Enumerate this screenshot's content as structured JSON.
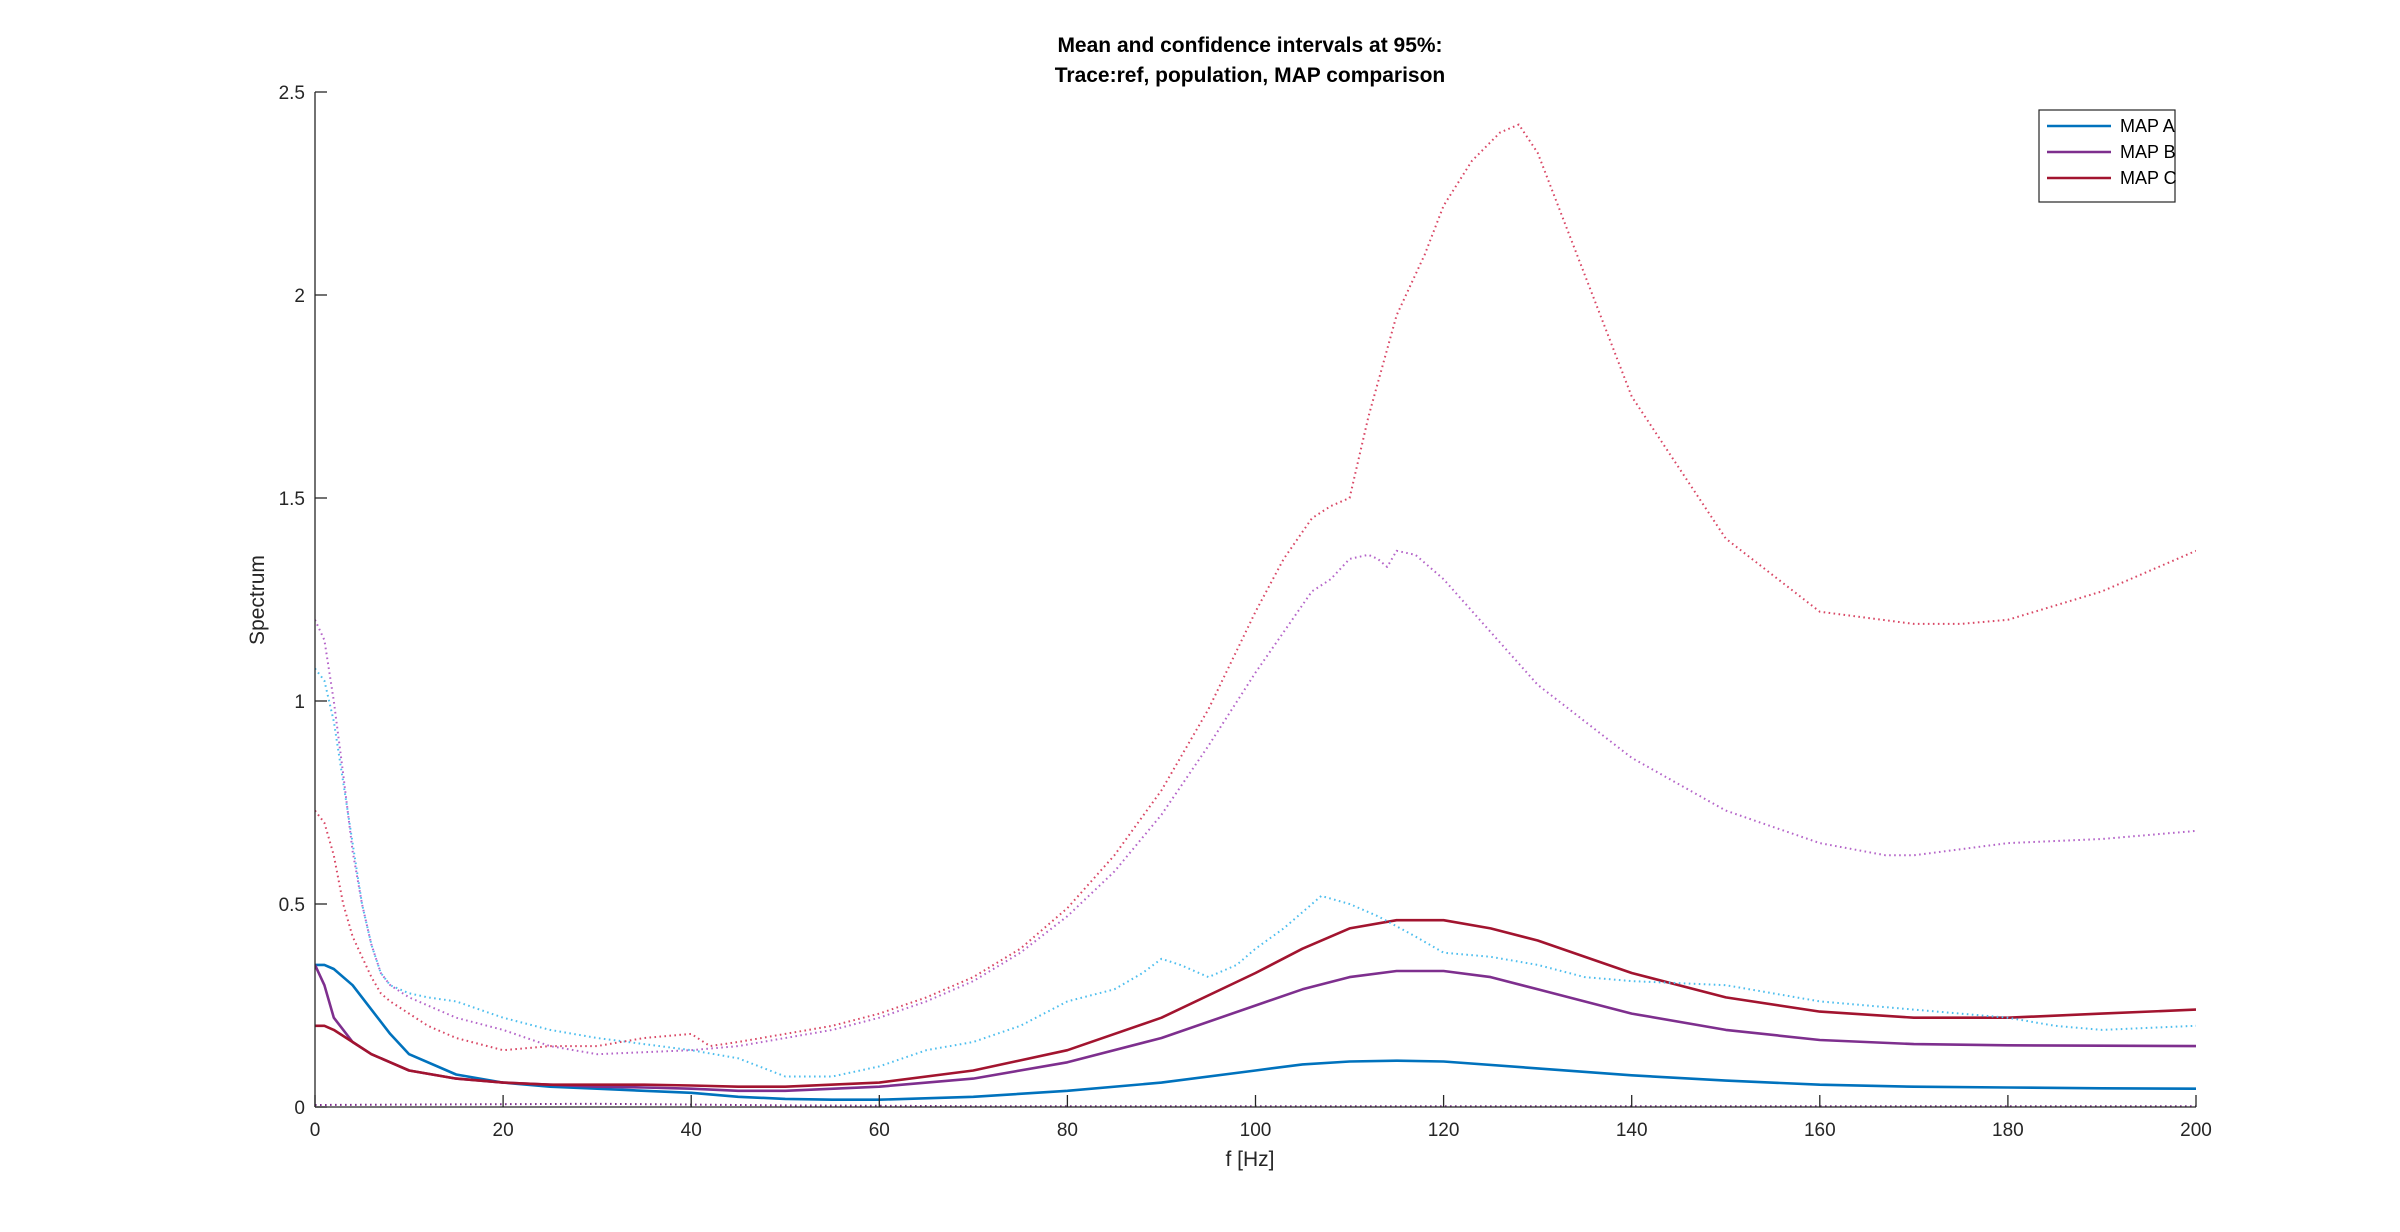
{
  "chart_data": {
    "type": "line",
    "title": [
      "Mean and confidence intervals at 95%:",
      "Trace:ref, population, MAP comparison"
    ],
    "xlabel": "f [Hz]",
    "ylabel": "Spectrum",
    "xlim": [
      0,
      200
    ],
    "ylim": [
      0,
      2.5
    ],
    "xticks": [
      0,
      20,
      40,
      60,
      80,
      100,
      120,
      140,
      160,
      180,
      200
    ],
    "xtick_labels": [
      "0",
      "20",
      "40",
      "60",
      "80",
      "100",
      "120",
      "140",
      "160",
      "180",
      "200"
    ],
    "yticks": [
      0,
      0.5,
      1,
      1.5,
      2,
      2.5
    ],
    "ytick_labels": [
      "0",
      "0.5",
      "1",
      "1.5",
      "2",
      "2.5"
    ],
    "grid": false,
    "legend_position": "top-right",
    "series": [
      {
        "name": "MAP A",
        "color": "#0072BD",
        "style": "solid",
        "in_legend": true,
        "x": [
          0,
          1,
          2,
          4,
          6,
          8,
          10,
          15,
          20,
          25,
          30,
          35,
          40,
          45,
          50,
          55,
          60,
          70,
          80,
          90,
          100,
          105,
          110,
          115,
          120,
          130,
          140,
          150,
          160,
          170,
          180,
          190,
          200
        ],
        "y": [
          0.35,
          0.35,
          0.34,
          0.3,
          0.24,
          0.18,
          0.13,
          0.08,
          0.06,
          0.05,
          0.045,
          0.04,
          0.035,
          0.025,
          0.02,
          0.018,
          0.018,
          0.025,
          0.04,
          0.06,
          0.09,
          0.105,
          0.112,
          0.114,
          0.112,
          0.095,
          0.078,
          0.065,
          0.055,
          0.05,
          0.048,
          0.046,
          0.045
        ]
      },
      {
        "name": "MAP B",
        "color": "#7E2F8E",
        "style": "solid",
        "in_legend": true,
        "x": [
          0,
          1,
          2,
          4,
          6,
          8,
          10,
          15,
          20,
          25,
          30,
          35,
          40,
          45,
          50,
          60,
          70,
          80,
          90,
          100,
          105,
          110,
          115,
          120,
          125,
          130,
          140,
          150,
          160,
          170,
          180,
          190,
          200
        ],
        "y": [
          0.35,
          0.3,
          0.22,
          0.16,
          0.13,
          0.11,
          0.09,
          0.07,
          0.06,
          0.055,
          0.05,
          0.048,
          0.045,
          0.04,
          0.04,
          0.05,
          0.07,
          0.11,
          0.17,
          0.25,
          0.29,
          0.32,
          0.335,
          0.335,
          0.32,
          0.29,
          0.23,
          0.19,
          0.165,
          0.155,
          0.152,
          0.151,
          0.15
        ]
      },
      {
        "name": "MAP C",
        "color": "#A2142F",
        "style": "solid",
        "in_legend": true,
        "x": [
          0,
          1,
          2,
          4,
          6,
          8,
          10,
          15,
          20,
          25,
          30,
          35,
          40,
          45,
          50,
          60,
          70,
          80,
          90,
          100,
          105,
          110,
          115,
          120,
          125,
          130,
          140,
          150,
          160,
          170,
          180,
          190,
          200
        ],
        "y": [
          0.2,
          0.2,
          0.19,
          0.16,
          0.13,
          0.11,
          0.09,
          0.07,
          0.06,
          0.055,
          0.055,
          0.055,
          0.053,
          0.05,
          0.05,
          0.06,
          0.09,
          0.14,
          0.22,
          0.33,
          0.39,
          0.44,
          0.46,
          0.46,
          0.44,
          0.41,
          0.33,
          0.27,
          0.235,
          0.22,
          0.22,
          0.23,
          0.24
        ]
      },
      {
        "name": "",
        "color": "#4DBEEE",
        "style": "dotted",
        "in_legend": false,
        "x": [
          0,
          1,
          2,
          3,
          4,
          5,
          6,
          7,
          8,
          10,
          12,
          15,
          20,
          25,
          30,
          35,
          40,
          45,
          50,
          55,
          60,
          65,
          70,
          75,
          80,
          85,
          88,
          90,
          92,
          95,
          98,
          100,
          103,
          107,
          110,
          113,
          117,
          120,
          125,
          130,
          135,
          140,
          150,
          160,
          170,
          180,
          185,
          190,
          200
        ],
        "y": [
          1.08,
          1.05,
          0.95,
          0.8,
          0.65,
          0.5,
          0.4,
          0.33,
          0.3,
          0.28,
          0.27,
          0.26,
          0.22,
          0.19,
          0.17,
          0.155,
          0.14,
          0.12,
          0.075,
          0.075,
          0.1,
          0.14,
          0.16,
          0.2,
          0.26,
          0.29,
          0.33,
          0.365,
          0.35,
          0.32,
          0.35,
          0.39,
          0.44,
          0.52,
          0.5,
          0.47,
          0.42,
          0.38,
          0.37,
          0.35,
          0.32,
          0.31,
          0.3,
          0.26,
          0.24,
          0.22,
          0.2,
          0.19,
          0.2
        ]
      },
      {
        "name": "",
        "color": "#B565C9",
        "style": "dotted",
        "in_legend": false,
        "x": [
          0,
          1,
          2,
          3,
          4,
          5,
          6,
          7,
          8,
          10,
          12,
          15,
          20,
          25,
          30,
          35,
          40,
          45,
          50,
          55,
          60,
          65,
          70,
          75,
          80,
          85,
          90,
          95,
          100,
          103,
          106,
          108,
          110,
          112,
          113,
          114,
          115,
          117,
          120,
          125,
          130,
          140,
          150,
          160,
          167,
          170,
          180,
          190,
          200
        ],
        "y": [
          1.2,
          1.15,
          1.0,
          0.82,
          0.63,
          0.5,
          0.4,
          0.33,
          0.3,
          0.27,
          0.25,
          0.22,
          0.19,
          0.15,
          0.13,
          0.135,
          0.14,
          0.15,
          0.17,
          0.19,
          0.22,
          0.26,
          0.31,
          0.38,
          0.47,
          0.58,
          0.72,
          0.89,
          1.07,
          1.17,
          1.27,
          1.3,
          1.35,
          1.36,
          1.35,
          1.33,
          1.37,
          1.36,
          1.3,
          1.17,
          1.04,
          0.86,
          0.73,
          0.65,
          0.62,
          0.62,
          0.65,
          0.66,
          0.68
        ]
      },
      {
        "name": "",
        "color": "#D94765",
        "style": "dotted",
        "in_legend": false,
        "x": [
          0,
          1,
          2,
          3,
          4,
          5,
          6,
          7,
          8,
          10,
          12,
          15,
          20,
          25,
          30,
          35,
          40,
          42,
          45,
          50,
          55,
          60,
          65,
          70,
          75,
          80,
          85,
          90,
          95,
          100,
          103,
          106,
          108,
          110,
          112,
          115,
          118,
          120,
          123,
          126,
          128,
          130,
          135,
          140,
          150,
          160,
          170,
          175,
          180,
          190,
          200
        ],
        "y": [
          0.73,
          0.7,
          0.62,
          0.5,
          0.42,
          0.37,
          0.32,
          0.28,
          0.26,
          0.23,
          0.2,
          0.17,
          0.14,
          0.15,
          0.15,
          0.17,
          0.18,
          0.15,
          0.16,
          0.18,
          0.2,
          0.23,
          0.27,
          0.32,
          0.39,
          0.49,
          0.62,
          0.78,
          0.98,
          1.22,
          1.35,
          1.45,
          1.48,
          1.5,
          1.7,
          1.95,
          2.1,
          2.22,
          2.33,
          2.4,
          2.42,
          2.35,
          2.05,
          1.75,
          1.4,
          1.22,
          1.19,
          1.19,
          1.2,
          1.27,
          1.37
        ]
      },
      {
        "name": "",
        "color": "#7E2F8E",
        "style": "dotted",
        "in_legend": false,
        "x": [
          0,
          10,
          20,
          30,
          40,
          50,
          60,
          70,
          80,
          90,
          100,
          110,
          120,
          130,
          140,
          150,
          160,
          170,
          180,
          190,
          200
        ],
        "y": [
          0.005,
          0.006,
          0.007,
          0.008,
          0.006,
          0.004,
          0.003,
          0.002,
          0.002,
          0.002,
          0.002,
          0.002,
          0.002,
          0.002,
          0.002,
          0.002,
          0.002,
          0.002,
          0.002,
          0.002,
          0.002
        ]
      }
    ]
  }
}
